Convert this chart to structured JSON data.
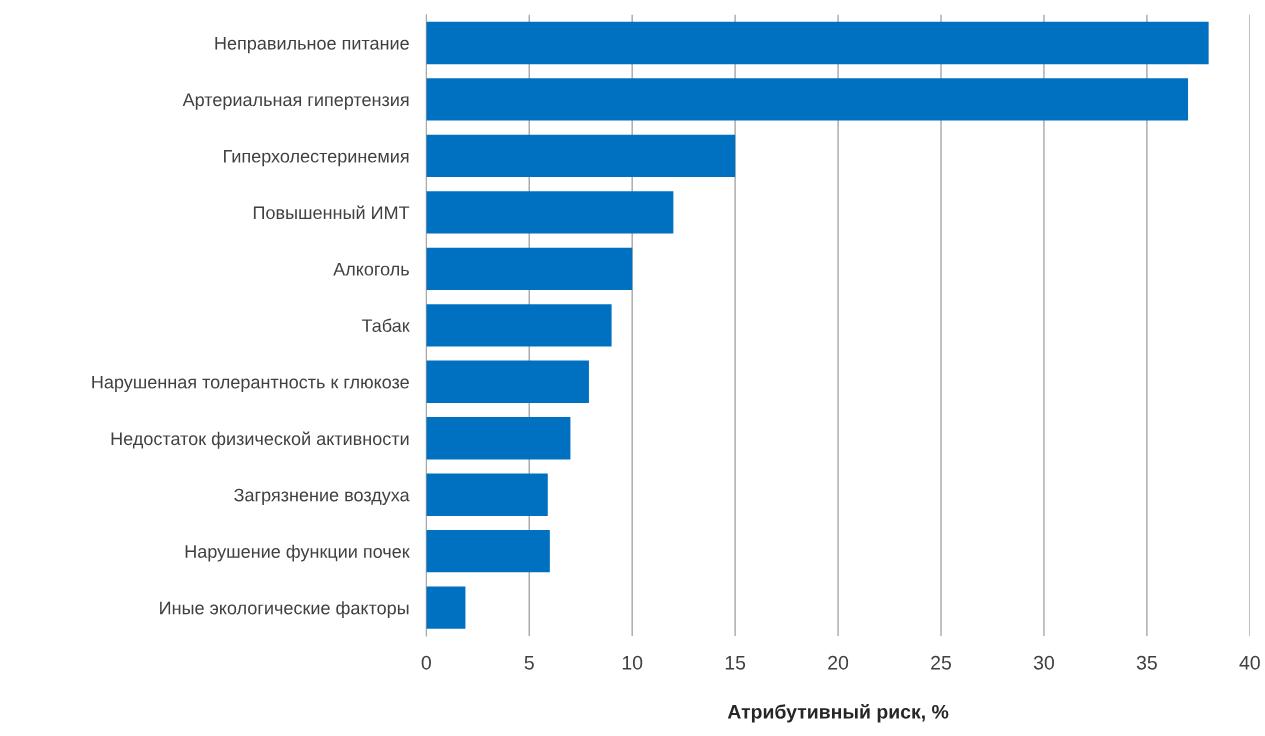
{
  "chart_data": {
    "type": "bar",
    "orientation": "horizontal",
    "xlabel": "Атрибутивный риск, %",
    "categories": [
      "Неправильное питание",
      "Артериальная гипертензия",
      "Гиперхолестеринемия",
      "Повышенный ИМТ",
      "Алкоголь",
      "Табак",
      "Нарушенная толерантность к глюкозе",
      "Недостаток физической активности",
      "Загрязнение воздуха",
      "Нарушение функции почек",
      "Иные экологические факторы"
    ],
    "values": [
      38,
      37,
      15,
      12,
      10,
      9,
      7.9,
      7,
      5.9,
      6,
      1.9
    ],
    "color": "#0070c0",
    "xlim": [
      0,
      40
    ],
    "xticks": [
      0,
      5,
      10,
      15,
      20,
      25,
      30,
      35,
      40
    ],
    "grid": "x",
    "legend": false
  }
}
